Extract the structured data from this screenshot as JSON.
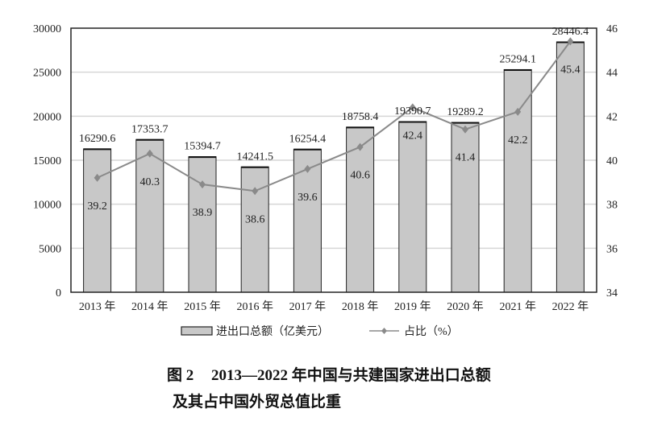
{
  "chart_data": {
    "type": "bar",
    "categories": [
      "2013 年",
      "2014 年",
      "2015 年",
      "2016 年",
      "2017 年",
      "2018 年",
      "2019 年",
      "2020 年",
      "2021 年",
      "2022 年"
    ],
    "series": [
      {
        "name": "进出口总额（亿美元）",
        "type": "bar",
        "axis": "left",
        "color": "#c8c8c8",
        "values": [
          16290.6,
          17353.7,
          15394.7,
          14241.5,
          16254.4,
          18758.4,
          19390.7,
          19289.2,
          25294.1,
          28446.4
        ],
        "labels": [
          "16290.6",
          "17353.7",
          "15394.7",
          "14241.5",
          "16254.4",
          "18758.4",
          "19390.7",
          "19289.2",
          "25294.1",
          "28446.4"
        ]
      },
      {
        "name": "占比（%）",
        "type": "line",
        "axis": "right",
        "color": "#8a8a8a",
        "values": [
          39.2,
          40.3,
          38.9,
          38.6,
          39.6,
          40.6,
          42.4,
          41.4,
          42.2,
          45.4
        ],
        "labels": [
          "39.2",
          "40.3",
          "38.9",
          "38.6",
          "39.6",
          "40.6",
          "42.4",
          "41.4",
          "42.2",
          "45.4"
        ]
      }
    ],
    "ylim": [
      0,
      30000
    ],
    "y_ticks": [
      "0",
      "5000",
      "10000",
      "15000",
      "20000",
      "25000",
      "30000"
    ],
    "y2lim": [
      34,
      46
    ],
    "y2_ticks": [
      "34",
      "36",
      "38",
      "40",
      "42",
      "44",
      "46"
    ],
    "grid": true,
    "legend_placement": "bottom",
    "title_prefix": "图 2",
    "title_line1": "2013—2022 年中国与共建国家进出口总额",
    "title_line2": "及其占中国外贸总值比重"
  }
}
